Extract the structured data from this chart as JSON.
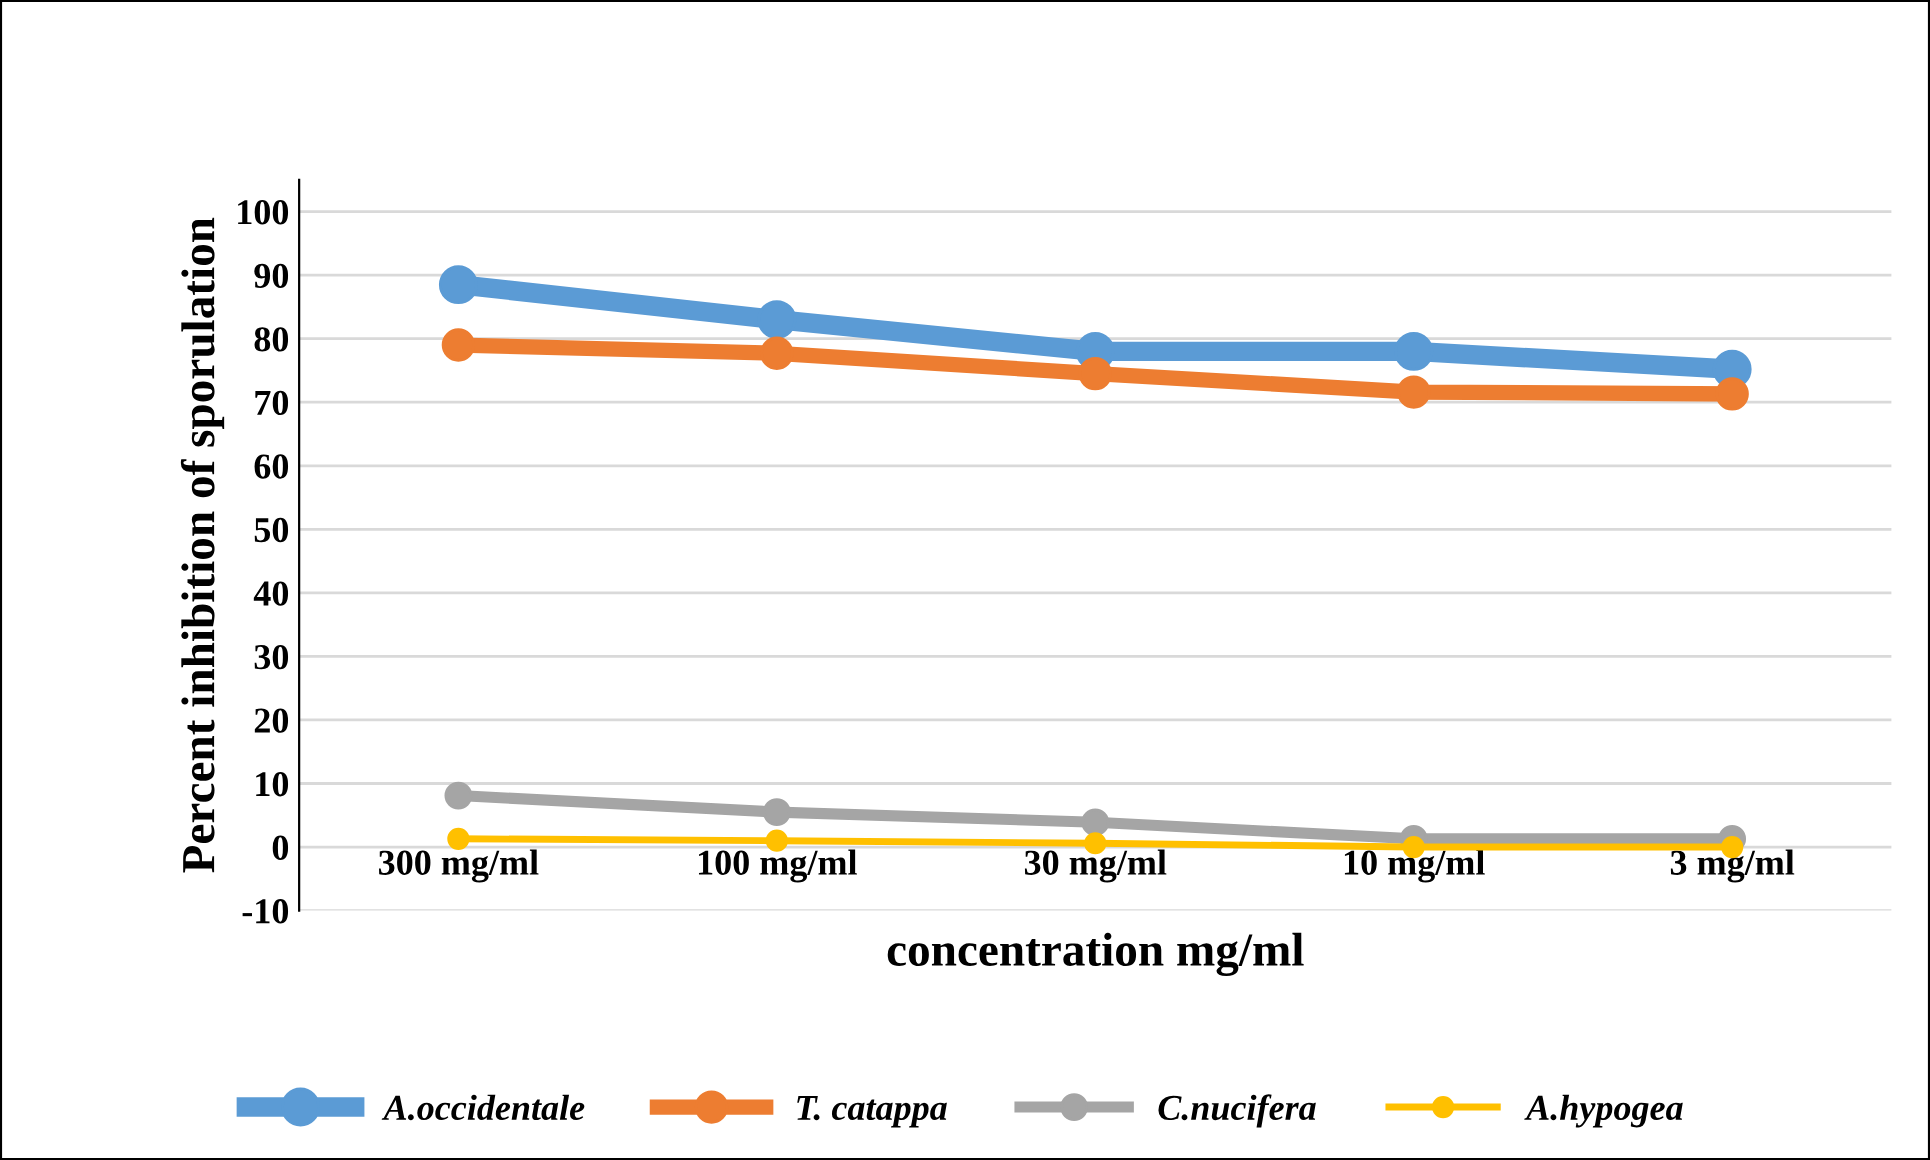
{
  "chart_data": {
    "type": "line",
    "xlabel": "concentration mg/ml",
    "ylabel": "Percent inhibition of sporulation",
    "categories": [
      "300 mg/ml",
      "100 mg/ml",
      "30 mg/ml",
      "10 mg/ml",
      "3 mg/ml"
    ],
    "series": [
      {
        "name": "A.occidentale",
        "color": "#5b9bd5",
        "values": [
          88.5,
          83,
          78,
          78,
          75.2
        ]
      },
      {
        "name": "T. catappa",
        "color": "#ed7d31",
        "values": [
          79,
          77.7,
          74.5,
          71.6,
          71.3
        ]
      },
      {
        "name": "C.nucifera",
        "color": "#a5a5a5",
        "values": [
          8.1,
          5.5,
          3.9,
          1.3,
          1.3
        ]
      },
      {
        "name": "A.hypogea",
        "color": "#ffc000",
        "values": [
          1.3,
          1,
          0.6,
          0,
          0
        ]
      }
    ],
    "ylim": [
      -10,
      105
    ],
    "yticks": [
      -10,
      0,
      10,
      20,
      30,
      40,
      50,
      60,
      70,
      80,
      90,
      100
    ],
    "grid": "y",
    "legend": "bottom",
    "marker": "circle",
    "line_style": "solid"
  }
}
